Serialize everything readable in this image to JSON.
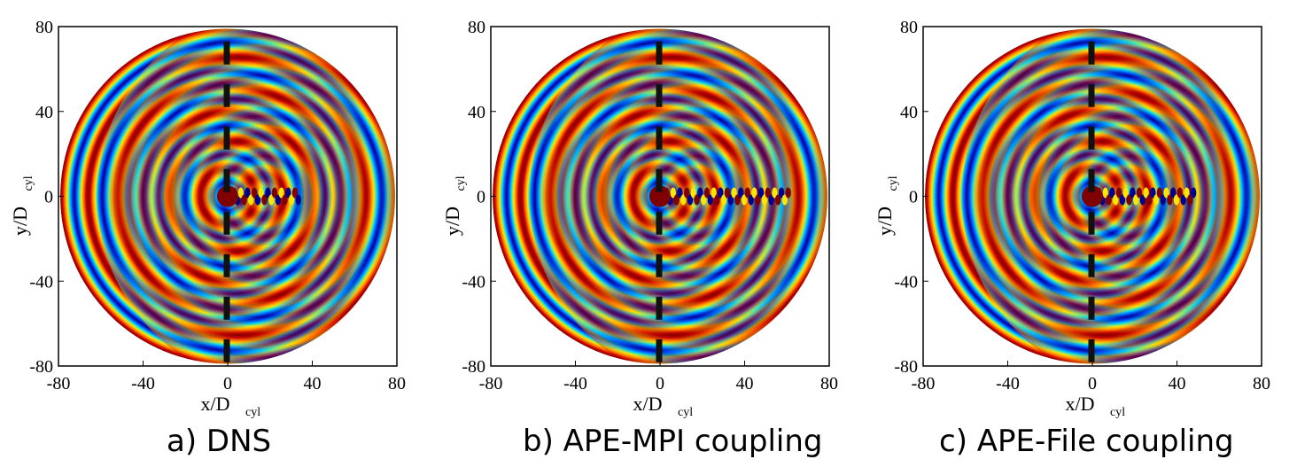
{
  "figure": {
    "colors": {
      "deep_blue": "#00008f",
      "blue": "#0050ff",
      "cyan": "#00e0f0",
      "yellow": "#ffe600",
      "orange": "#ff8000",
      "red": "#d00000",
      "dark_red": "#800000"
    }
  },
  "chart_data": [
    {
      "type": "heatmap",
      "caption": "a)  DNS",
      "xlabel": "x/D",
      "xlabel_sub": "cyl",
      "ylabel": "y/D",
      "ylabel_sub": "cyl",
      "xlim": [
        -80,
        80
      ],
      "ylim": [
        -80,
        80
      ],
      "xticks": [
        -80,
        -40,
        0,
        40,
        80
      ],
      "yticks": [
        -80,
        -40,
        0,
        40,
        80
      ],
      "colormap": "jet",
      "wake_extent_x": 35
    },
    {
      "type": "heatmap",
      "caption": "b) APE-MPI coupling",
      "xlabel": "x/D",
      "xlabel_sub": "cyl",
      "ylabel": "y/D",
      "ylabel_sub": "cyl",
      "xlim": [
        -80,
        80
      ],
      "ylim": [
        -80,
        80
      ],
      "xticks": [
        -80,
        -40,
        0,
        40,
        80
      ],
      "yticks": [
        -80,
        -40,
        0,
        40,
        80
      ],
      "colormap": "jet",
      "wake_extent_x": 62
    },
    {
      "type": "heatmap",
      "caption": "c) APE-File coupling",
      "xlabel": "x/D",
      "xlabel_sub": "cyl",
      "ylabel": "y/D",
      "ylabel_sub": "cyl",
      "xlim": [
        -80,
        80
      ],
      "ylim": [
        -80,
        80
      ],
      "xticks": [
        -80,
        -40,
        0,
        40,
        80
      ],
      "yticks": [
        -80,
        -40,
        0,
        40,
        80
      ],
      "colormap": "jet",
      "wake_extent_x": 50
    }
  ]
}
